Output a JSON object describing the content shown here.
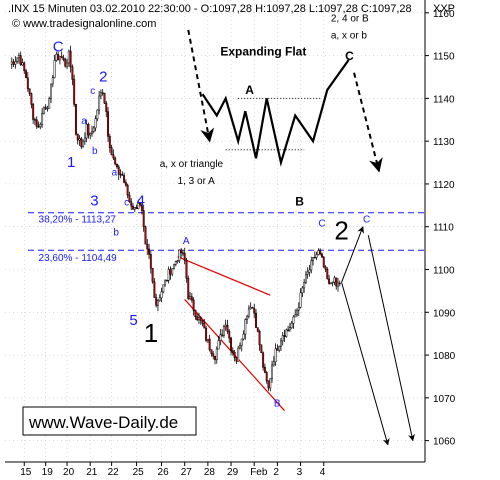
{
  "header": {
    "title": ".INX 15 Minuten  03.02.2010 22:30:00 - O:1097,28 H:1097,28 L:1097,28 C:1097,28",
    "site": "© www.tradesignalonline.com",
    "axis_label": "XXP"
  },
  "watermark": {
    "text": "www.Wave-Daily.de"
  },
  "colors": {
    "up_candle": "#ffffff",
    "down_candle": "#cc0000",
    "candle_outline": "#000000",
    "wave_label": "#1a1aff",
    "fib_line": "#1a1aff",
    "channel_line": "#e00000",
    "grid": "#c8c8c8"
  },
  "chart_data": {
    "type": "candlestick",
    "ylim": [
      1055,
      1163
    ],
    "y_ticks": [
      1060,
      1070,
      1080,
      1090,
      1100,
      1110,
      1120,
      1130,
      1140,
      1150,
      1160
    ],
    "x_tick_labels": [
      "15",
      "19",
      "20",
      "21",
      "22",
      "25",
      "26",
      "27",
      "28",
      "29",
      "Feb",
      "2",
      "3",
      "4"
    ],
    "fib_levels": [
      {
        "label": "38,20% - 1113,27",
        "value": 1113.27
      },
      {
        "label": "23,60% - 1104,49",
        "value": 1104.49
      }
    ],
    "price_path": [
      [
        0,
        1148
      ],
      [
        5,
        1150
      ],
      [
        9,
        1145
      ],
      [
        13,
        1136
      ],
      [
        16,
        1133
      ],
      [
        19,
        1138
      ],
      [
        22,
        1139
      ],
      [
        25,
        1149
      ],
      [
        28,
        1150
      ],
      [
        31,
        1148
      ],
      [
        33,
        1150
      ],
      [
        35,
        1145
      ],
      [
        37,
        1132
      ],
      [
        40,
        1129
      ],
      [
        43,
        1133
      ],
      [
        45,
        1131
      ],
      [
        48,
        1135
      ],
      [
        50,
        1140
      ],
      [
        52,
        1142
      ],
      [
        54,
        1137
      ],
      [
        55,
        1132
      ],
      [
        57,
        1127
      ],
      [
        60,
        1123
      ],
      [
        63,
        1122
      ],
      [
        65,
        1119
      ],
      [
        67,
        1116
      ],
      [
        70,
        1114
      ],
      [
        72,
        1116
      ],
      [
        74,
        1113
      ],
      [
        76,
        1105
      ],
      [
        78,
        1103
      ],
      [
        80,
        1097
      ],
      [
        82,
        1092
      ],
      [
        84,
        1094
      ],
      [
        86,
        1096
      ],
      [
        88,
        1098
      ],
      [
        90,
        1100
      ],
      [
        92,
        1101
      ],
      [
        94,
        1103
      ],
      [
        96,
        1104
      ],
      [
        98,
        1102
      ],
      [
        100,
        1094
      ],
      [
        103,
        1091
      ],
      [
        105,
        1089
      ],
      [
        108,
        1087
      ],
      [
        110,
        1084
      ],
      [
        112,
        1082
      ],
      [
        115,
        1080
      ],
      [
        118,
        1084
      ],
      [
        121,
        1088
      ],
      [
        124,
        1082
      ],
      [
        127,
        1079
      ],
      [
        129,
        1083
      ],
      [
        131,
        1086
      ],
      [
        133,
        1090
      ],
      [
        135,
        1092
      ],
      [
        137,
        1090
      ],
      [
        139,
        1085
      ],
      [
        141,
        1080
      ],
      [
        143,
        1075
      ],
      [
        145,
        1072
      ],
      [
        147,
        1078
      ],
      [
        150,
        1082
      ],
      [
        153,
        1085
      ],
      [
        156,
        1086
      ],
      [
        159,
        1088
      ],
      [
        162,
        1092
      ],
      [
        165,
        1097
      ],
      [
        168,
        1100
      ],
      [
        171,
        1103
      ],
      [
        173,
        1104
      ],
      [
        175,
        1102
      ],
      [
        177,
        1099
      ],
      [
        179,
        1096
      ],
      [
        181,
        1098
      ],
      [
        183,
        1096
      ],
      [
        185,
        1097
      ]
    ],
    "channel_lines": [
      {
        "from": [
          94,
          1103
        ],
        "to": [
          146,
          1094
        ]
      },
      {
        "from": [
          98,
          1093
        ],
        "to": [
          154,
          1067
        ]
      }
    ],
    "projections": [
      {
        "from": [
          186,
          1097
        ],
        "to": [
          198,
          1110
        ],
        "dashed": false
      },
      {
        "from": [
          186,
          1097
        ],
        "to": [
          212,
          1059
        ],
        "dashed": false
      },
      {
        "from": [
          201,
          1108
        ],
        "to": [
          226,
          1060
        ],
        "dashed": false
      }
    ],
    "flat_diagram": {
      "legend_title": "Expanding Flat",
      "path": [
        [
          108,
          1141
        ],
        [
          116,
          1136
        ],
        [
          121,
          1140
        ],
        [
          128,
          1130
        ],
        [
          132,
          1137
        ],
        [
          138,
          1126
        ],
        [
          144,
          1140
        ],
        [
          152,
          1125
        ],
        [
          160,
          1136
        ],
        [
          170,
          1130
        ],
        [
          178,
          1142
        ],
        [
          190,
          1149
        ]
      ],
      "dotted_a": {
        "from": [
          128,
          1140
        ],
        "to": [
          174,
          1140
        ]
      },
      "dotted_b": {
        "from": [
          121,
          1128
        ],
        "to": [
          165,
          1128
        ]
      },
      "dash_in": {
        "from": [
          100,
          1156
        ],
        "to": [
          112,
          1130
        ]
      },
      "dash_out": {
        "from": [
          193,
          1146
        ],
        "to": [
          207,
          1123
        ]
      }
    },
    "labels": [
      {
        "text": "C",
        "x": 24,
        "y": 1151,
        "cls": "wave-blue"
      },
      {
        "text": "2",
        "x": 50,
        "y": 1144,
        "cls": "wave-blue"
      },
      {
        "text": "c",
        "x": 45,
        "y": 1141,
        "cls": "wave-blue-s"
      },
      {
        "text": "a",
        "x": 40,
        "y": 1134,
        "cls": "wave-blue-s"
      },
      {
        "text": "b",
        "x": 46,
        "y": 1127,
        "cls": "wave-blue-s"
      },
      {
        "text": "1",
        "x": 32,
        "y": 1124,
        "cls": "wave-blue"
      },
      {
        "text": "a",
        "x": 57,
        "y": 1122,
        "cls": "wave-blue-s"
      },
      {
        "text": "3",
        "x": 45,
        "y": 1115,
        "cls": "wave-blue"
      },
      {
        "text": "c",
        "x": 64,
        "y": 1115,
        "cls": "wave-blue-s"
      },
      {
        "text": "4",
        "x": 71,
        "y": 1115,
        "cls": "wave-blue"
      },
      {
        "text": "b",
        "x": 58,
        "y": 1108,
        "cls": "wave-blue-s"
      },
      {
        "text": "5",
        "x": 67,
        "y": 1087,
        "cls": "wave-blue"
      },
      {
        "text": "1",
        "x": 75,
        "y": 1083,
        "cls": "wave-black-l"
      },
      {
        "text": "A",
        "x": 97,
        "y": 1106,
        "cls": "wave-blue-s"
      },
      {
        "text": "B",
        "x": 148,
        "y": 1068,
        "cls": "wave-blue-s"
      },
      {
        "text": "C",
        "x": 173,
        "y": 1110,
        "cls": "wave-blue-s"
      },
      {
        "text": "2",
        "x": 182,
        "y": 1107,
        "cls": "wave-black-l"
      },
      {
        "text": "C",
        "x": 198,
        "y": 1111,
        "cls": "wave-blue-s"
      },
      {
        "text": "38,20% - 1113,27",
        "x": 16,
        "y": 1111,
        "cls": "fib"
      },
      {
        "text": "23,60% - 1104,49",
        "x": 16,
        "y": 1102,
        "cls": "fib"
      },
      {
        "text": "Expanding Flat",
        "x": 118,
        "y": 1150,
        "cls": "ann-b"
      },
      {
        "text": "A",
        "x": 132,
        "y": 1141,
        "cls": "ann-b"
      },
      {
        "text": "B",
        "x": 160,
        "y": 1115,
        "cls": "ann-b"
      },
      {
        "text": "C",
        "x": 188,
        "y": 1149,
        "cls": "ann-b"
      },
      {
        "text": "a, x or triangle",
        "x": 84,
        "y": 1124,
        "cls": "ann"
      },
      {
        "text": "1, 3 or A",
        "x": 94,
        "y": 1120,
        "cls": "ann"
      },
      {
        "text": "2, 4 or B",
        "x": 180,
        "y": 1158,
        "cls": "ann"
      },
      {
        "text": "a, x or b",
        "x": 180,
        "y": 1154,
        "cls": "ann"
      }
    ]
  }
}
